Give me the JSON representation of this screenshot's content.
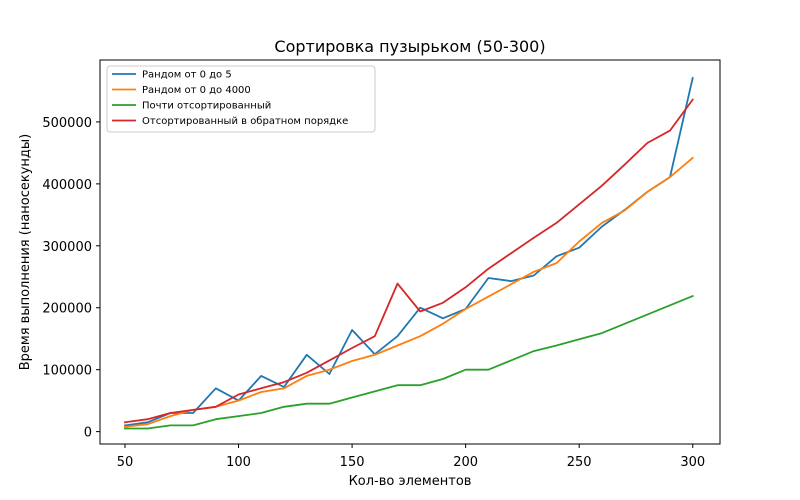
{
  "chart_data": {
    "type": "line",
    "title": "Сортировка пузырьком (50-300)",
    "xlabel": "Кол-во элементов",
    "ylabel": "Время выполнения (наносекунды)",
    "xlim": [
      39,
      312
    ],
    "ylim": [
      -20000,
      600000
    ],
    "xticks": [
      50,
      100,
      150,
      200,
      250,
      300
    ],
    "yticks": [
      0,
      100000,
      200000,
      300000,
      400000,
      500000
    ],
    "grid": false,
    "legend_position": "top-left",
    "x": [
      50,
      60,
      70,
      80,
      90,
      100,
      110,
      120,
      130,
      140,
      150,
      160,
      170,
      180,
      190,
      200,
      210,
      220,
      230,
      240,
      250,
      260,
      270,
      280,
      290,
      300
    ],
    "series": [
      {
        "name": "Рандом от 0 до 5",
        "color": "#1f77b4",
        "values": [
          10000,
          15000,
          30000,
          30000,
          70000,
          50000,
          90000,
          72000,
          124000,
          93000,
          164000,
          125000,
          154000,
          200000,
          183000,
          198000,
          248000,
          243000,
          252000,
          283000,
          297000,
          331000,
          358000,
          387000,
          411000,
          571000
        ]
      },
      {
        "name": "Рандом от 0 до 4000",
        "color": "#ff7f0e",
        "values": [
          8000,
          12000,
          25000,
          35000,
          40000,
          50000,
          64000,
          70000,
          90000,
          100000,
          114000,
          124000,
          139000,
          154000,
          174000,
          198000,
          218000,
          238000,
          258000,
          272000,
          307000,
          337000,
          357000,
          387000,
          411000,
          442000
        ]
      },
      {
        "name": "Почти отсортированный",
        "color": "#2ca02c",
        "values": [
          5000,
          5000,
          10000,
          10000,
          20000,
          25000,
          30000,
          40000,
          45000,
          45000,
          55000,
          65000,
          75000,
          75000,
          85000,
          100000,
          100000,
          115000,
          130000,
          139000,
          149000,
          159000,
          174000,
          189000,
          204000,
          219000
        ]
      },
      {
        "name": "Отсортированный в обратном порядке",
        "color": "#d62728",
        "values": [
          15000,
          20000,
          30000,
          35000,
          40000,
          60000,
          70000,
          80000,
          95000,
          115000,
          135000,
          154000,
          239000,
          194000,
          208000,
          233000,
          263000,
          288000,
          313000,
          337000,
          367000,
          397000,
          431000,
          466000,
          486000,
          536000
        ]
      }
    ]
  }
}
